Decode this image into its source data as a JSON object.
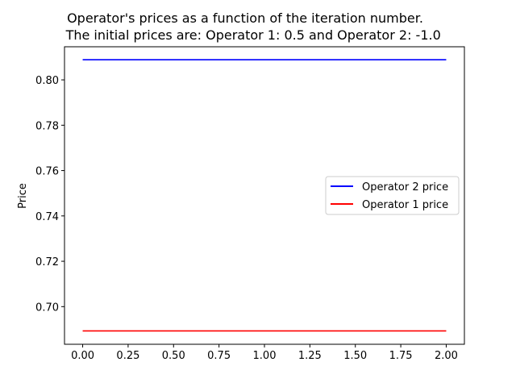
{
  "chart_data": {
    "type": "line",
    "title_lines": [
      "Operator's prices as a function of the iteration number.",
      "    The initial prices are: Operator 1: 0.5 and Operator 2: -1.0"
    ],
    "xlabel": "",
    "ylabel": "Price",
    "xlim": [
      -0.1,
      2.1
    ],
    "ylim": [
      0.6834,
      0.8146
    ],
    "x_ticks": [
      0.0,
      0.25,
      0.5,
      0.75,
      1.0,
      1.25,
      1.5,
      1.75,
      2.0
    ],
    "x_tick_labels": [
      "0.00",
      "0.25",
      "0.50",
      "0.75",
      "1.00",
      "1.25",
      "1.50",
      "1.75",
      "2.00"
    ],
    "y_ticks": [
      0.7,
      0.72,
      0.74,
      0.76,
      0.78,
      0.8
    ],
    "y_tick_labels": [
      "0.70",
      "0.72",
      "0.74",
      "0.76",
      "0.78",
      "0.80"
    ],
    "grid": false,
    "legend_position": "center-right",
    "series": [
      {
        "name": "Operator 2 price",
        "color": "#0000ff",
        "x": [
          0,
          1,
          2
        ],
        "y": [
          0.8089,
          0.8089,
          0.8089
        ]
      },
      {
        "name": "Operator 1 price",
        "color": "#ff0000",
        "x": [
          0,
          1,
          2
        ],
        "y": [
          0.6893,
          0.6893,
          0.6893
        ]
      }
    ]
  }
}
